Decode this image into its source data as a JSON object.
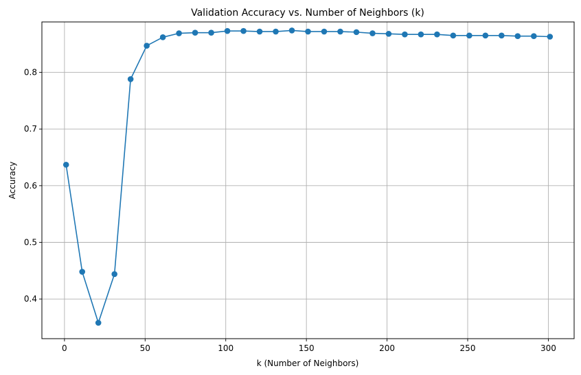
{
  "chart_data": {
    "type": "line",
    "title": "Validation Accuracy vs. Number of Neighbors (k)",
    "xlabel": "k (Number of Neighbors)",
    "ylabel": "Accuracy",
    "xlim": [
      -14,
      316
    ],
    "ylim": [
      0.33,
      0.889
    ],
    "xticks": [
      0,
      50,
      100,
      150,
      200,
      250,
      300
    ],
    "yticks": [
      0.4,
      0.5,
      0.6,
      0.7,
      0.8
    ],
    "grid": true,
    "marker": "circle",
    "color": "#1f77b4",
    "series": [
      {
        "x": [
          1,
          11,
          21,
          31,
          41,
          51,
          61,
          71,
          81,
          91,
          101,
          111,
          121,
          131,
          141,
          151,
          161,
          171,
          181,
          191,
          201,
          211,
          221,
          231,
          241,
          251,
          261,
          271,
          281,
          291,
          301
        ],
        "values": [
          0.637,
          0.448,
          0.358,
          0.444,
          0.788,
          0.847,
          0.862,
          0.869,
          0.87,
          0.87,
          0.873,
          0.873,
          0.872,
          0.872,
          0.874,
          0.872,
          0.872,
          0.872,
          0.871,
          0.869,
          0.868,
          0.867,
          0.867,
          0.867,
          0.865,
          0.865,
          0.865,
          0.865,
          0.864,
          0.864,
          0.863
        ]
      }
    ]
  }
}
